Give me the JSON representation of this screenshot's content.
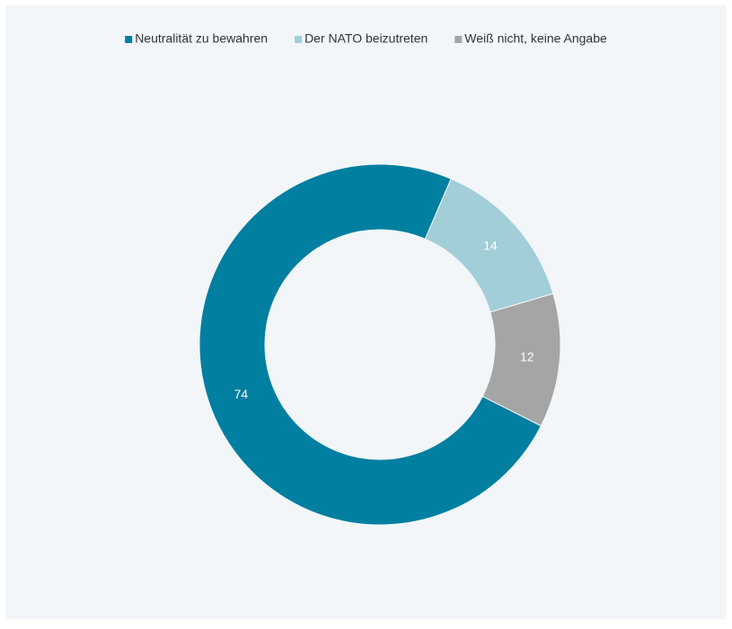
{
  "chart_data": {
    "type": "donut",
    "categories": [
      "Neutralität zu bewahren",
      "Der NATO beizutreten",
      "Weiß nicht, keine Angabe"
    ],
    "values": [
      74,
      14,
      12
    ],
    "colors": [
      "#007fa0",
      "#a2ced8",
      "#a5a5a5"
    ],
    "legend": "top"
  }
}
